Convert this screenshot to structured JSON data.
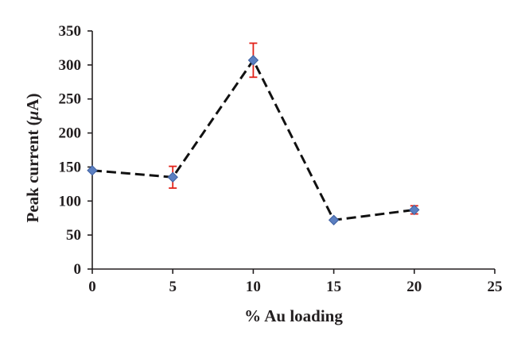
{
  "chart_data": {
    "type": "scatter",
    "title": "",
    "xlabel": "% Au loading",
    "ylabel_prefix": "Peak current (",
    "ylabel_symbol": "μ",
    "ylabel_suffix": "A)",
    "xlim": [
      0,
      25
    ],
    "ylim": [
      0,
      350
    ],
    "x_ticks": [
      0,
      5,
      10,
      15,
      20,
      25
    ],
    "y_ticks": [
      0,
      50,
      100,
      150,
      200,
      250,
      300,
      350
    ],
    "grid": false,
    "legend": "none",
    "series": [
      {
        "line_style": "dashed",
        "marker": "diamond",
        "points": [
          {
            "x": 0,
            "y": 145,
            "err": 0
          },
          {
            "x": 5,
            "y": 135,
            "err": 16
          },
          {
            "x": 10,
            "y": 307,
            "err": 25
          },
          {
            "x": 15,
            "y": 72,
            "err": 0
          },
          {
            "x": 20,
            "y": 87,
            "err": 6
          }
        ]
      }
    ],
    "colors": {
      "marker": "#5b7fc1",
      "line": "#111111",
      "error_bar": "#e2231a",
      "axis": "#231f20"
    }
  }
}
